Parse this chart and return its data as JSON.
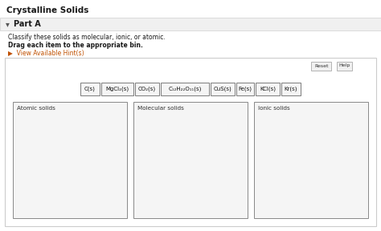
{
  "title": "Crystalline Solids",
  "part_label": "Part A",
  "instruction1": "Classify these solids as molecular, ionic, or atomic.",
  "instruction2": "Drag each item to the appropriate bin.",
  "hint_text": "▶  View Available Hint(s)",
  "items_text": [
    "C(s)",
    "MgCl₂(s)",
    "CO₂(s)",
    "C₁₂H₂₂O₁₁(s)",
    "CuS(s)",
    "Fe(s)",
    "KCl(s)",
    "Kr(s)"
  ],
  "item_widths": [
    22,
    38,
    28,
    58,
    28,
    20,
    28,
    22
  ],
  "bins": [
    "Atomic solids",
    "Molecular solids",
    "Ionic solids"
  ],
  "btn_reset": "Reset",
  "btn_help": "Help",
  "bg_color": "#ffffff",
  "part_bg": "#f0f0f0",
  "part_border": "#d0d0d0",
  "outer_border": "#cccccc",
  "title_color": "#1a1a1a",
  "hint_color": "#c05000",
  "item_bg": "#f5f5f5",
  "item_border": "#666666",
  "bin_bg": "#f5f5f5",
  "bin_border": "#888888",
  "panel_bg": "#ffffff",
  "btn_bg": "#f0f0f0",
  "btn_border": "#999999"
}
